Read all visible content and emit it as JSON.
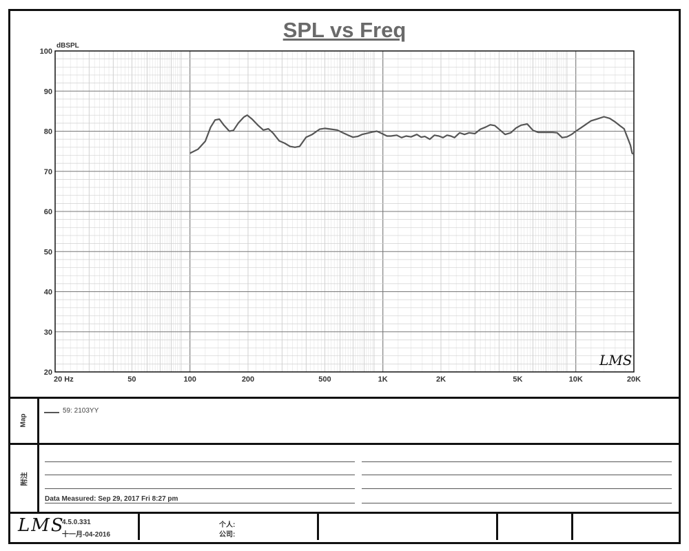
{
  "chart_data": {
    "type": "line",
    "title": "SPL vs Freq",
    "ylabel": "dBSPL",
    "xscale": "log",
    "xlim": [
      20,
      20000
    ],
    "ylim": [
      20,
      100
    ],
    "x_ticks": [
      {
        "value": 20,
        "label": "20  Hz"
      },
      {
        "value": 50,
        "label": "50"
      },
      {
        "value": 100,
        "label": "100"
      },
      {
        "value": 200,
        "label": "200"
      },
      {
        "value": 500,
        "label": "500"
      },
      {
        "value": 1000,
        "label": "1K"
      },
      {
        "value": 2000,
        "label": "2K"
      },
      {
        "value": 5000,
        "label": "5K"
      },
      {
        "value": 10000,
        "label": "10K"
      },
      {
        "value": 20000,
        "label": "20K"
      }
    ],
    "y_ticks": [
      20,
      30,
      40,
      50,
      60,
      70,
      80,
      90,
      100
    ],
    "grid": true,
    "series": [
      {
        "name": "59: 2103YY",
        "color": "#555555",
        "points": [
          [
            100,
            74.5
          ],
          [
            110,
            75.5
          ],
          [
            120,
            77.5
          ],
          [
            128,
            81
          ],
          [
            135,
            82.8
          ],
          [
            142,
            83
          ],
          [
            150,
            81.5
          ],
          [
            160,
            80
          ],
          [
            168,
            80.2
          ],
          [
            178,
            82
          ],
          [
            190,
            83.5
          ],
          [
            198,
            84
          ],
          [
            210,
            83
          ],
          [
            225,
            81.5
          ],
          [
            240,
            80.3
          ],
          [
            255,
            80.6
          ],
          [
            270,
            79.5
          ],
          [
            290,
            77.6
          ],
          [
            310,
            77
          ],
          [
            330,
            76.2
          ],
          [
            350,
            76
          ],
          [
            370,
            76.2
          ],
          [
            400,
            78.5
          ],
          [
            430,
            79.2
          ],
          [
            470,
            80.5
          ],
          [
            500,
            80.7
          ],
          [
            540,
            80.5
          ],
          [
            580,
            80.3
          ],
          [
            620,
            79.6
          ],
          [
            660,
            79
          ],
          [
            700,
            78.5
          ],
          [
            740,
            78.7
          ],
          [
            780,
            79.2
          ],
          [
            830,
            79.5
          ],
          [
            880,
            79.8
          ],
          [
            930,
            80
          ],
          [
            980,
            79.5
          ],
          [
            1050,
            78.8
          ],
          [
            1100,
            78.8
          ],
          [
            1180,
            79
          ],
          [
            1250,
            78.4
          ],
          [
            1320,
            78.8
          ],
          [
            1400,
            78.6
          ],
          [
            1500,
            79.2
          ],
          [
            1580,
            78.5
          ],
          [
            1650,
            78.7
          ],
          [
            1750,
            78
          ],
          [
            1850,
            79
          ],
          [
            1950,
            78.8
          ],
          [
            2050,
            78.4
          ],
          [
            2150,
            79
          ],
          [
            2250,
            78.8
          ],
          [
            2350,
            78.4
          ],
          [
            2500,
            79.6
          ],
          [
            2650,
            79.2
          ],
          [
            2800,
            79.6
          ],
          [
            3000,
            79.4
          ],
          [
            3200,
            80.5
          ],
          [
            3400,
            81
          ],
          [
            3600,
            81.6
          ],
          [
            3800,
            81.4
          ],
          [
            4000,
            80.5
          ],
          [
            4300,
            79.2
          ],
          [
            4600,
            79.6
          ],
          [
            4900,
            80.8
          ],
          [
            5200,
            81.5
          ],
          [
            5600,
            81.8
          ],
          [
            6000,
            80.2
          ],
          [
            6400,
            79.7
          ],
          [
            7000,
            79.7
          ],
          [
            7600,
            79.7
          ],
          [
            8000,
            79.6
          ],
          [
            8500,
            78.4
          ],
          [
            9000,
            78.6
          ],
          [
            9500,
            79.2
          ],
          [
            10000,
            80
          ],
          [
            10600,
            80.8
          ],
          [
            11200,
            81.6
          ],
          [
            12000,
            82.6
          ],
          [
            13000,
            83.1
          ],
          [
            14000,
            83.6
          ],
          [
            15000,
            83.2
          ],
          [
            16000,
            82.3
          ],
          [
            17000,
            81.3
          ],
          [
            17800,
            80.6
          ],
          [
            18500,
            78.5
          ],
          [
            19200,
            76.5
          ],
          [
            19600,
            74.5
          ],
          [
            20000,
            74.3
          ]
        ]
      }
    ],
    "watermark": "LMS",
    "legend_placement": "map-section"
  },
  "sections": {
    "map_label": "Map",
    "notes_label": "附注"
  },
  "notes": {
    "data_measured": "Data Measured:  Sep 29, 2017  Fri  8:27 pm"
  },
  "footer": {
    "logo": "LMS",
    "version": "4.5.0.331",
    "version_date": "十一月-04-2016",
    "person_label": "个人:",
    "company_label": "公司:"
  }
}
